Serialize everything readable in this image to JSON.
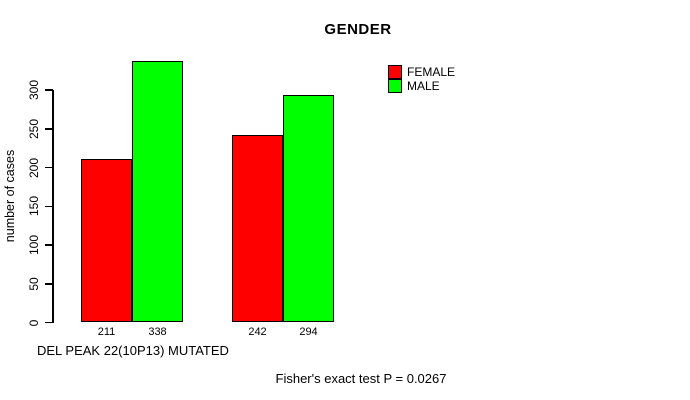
{
  "title": "GENDER",
  "y_axis": {
    "label": "number of cases"
  },
  "x_axis": {
    "label": "DEL PEAK 22(10P13) MUTATED"
  },
  "footnote": "Fisher's exact test P = 0.0267",
  "legend": {
    "items": [
      {
        "label": "FEMALE",
        "color": "#ff0000"
      },
      {
        "label": "MALE",
        "color": "#00ff00"
      }
    ]
  },
  "colors": {
    "female": "#ff0000",
    "male": "#00ff00",
    "axis": "#000000",
    "background": "#ffffff"
  },
  "chart_data": {
    "type": "bar",
    "grouped": true,
    "title": "GENDER",
    "xlabel": "DEL PEAK 22(10P13) MUTATED",
    "ylabel": "number of cases",
    "series": [
      {
        "name": "FEMALE",
        "color": "#ff0000",
        "values": [
          211,
          242
        ]
      },
      {
        "name": "MALE",
        "color": "#00ff00",
        "values": [
          338,
          294
        ]
      }
    ],
    "bar_value_labels": [
      [
        211,
        338
      ],
      [
        242,
        294
      ]
    ],
    "yticks": [
      0,
      50,
      100,
      150,
      200,
      250,
      300
    ],
    "ylim": [
      0,
      350
    ],
    "grid": false,
    "legend_position": "top-right",
    "annotation": "Fisher's exact test P = 0.0267"
  }
}
